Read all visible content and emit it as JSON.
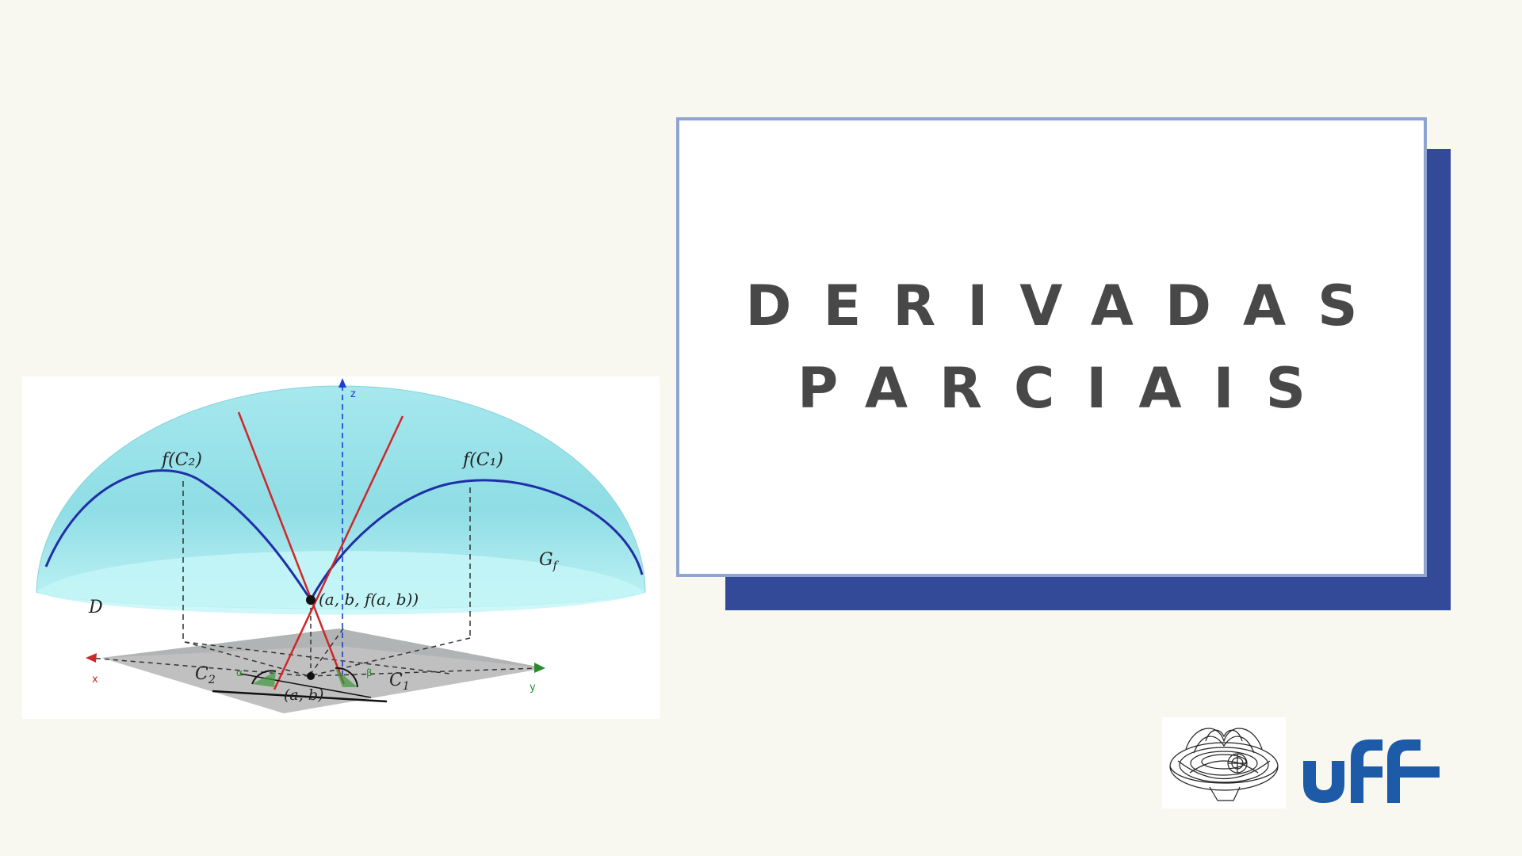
{
  "title": {
    "line1": "DERIVADAS",
    "line2": "PARCIAIS"
  },
  "figure": {
    "labels": {
      "f_c2": "f(C₂)",
      "f_c1": "f(C₁)",
      "gf": "G",
      "gf_sub": "f",
      "domain": "D",
      "point": "(a, b, f(a, b))",
      "c2": "C",
      "c2_sub": "2",
      "c1": "C",
      "c1_sub": "1",
      "ab": "(a, b)",
      "alpha": "α",
      "beta": "β",
      "axis_x": "x",
      "axis_y": "y",
      "axis_z": "z"
    }
  },
  "logos": {
    "uff_text": "uff"
  },
  "colors": {
    "background": "#f8f8f1",
    "card_border": "#8fa4d0",
    "card_shadow": "#334a99",
    "title_text": "#484848",
    "dome": "#9fe3ea",
    "curves": "#1f2fa8",
    "tangents": "#d0262a",
    "uff_blue": "#1d5aa8"
  },
  "icons": [
    "surface-figure",
    "mathematics-department-emblem",
    "uff-logo"
  ]
}
